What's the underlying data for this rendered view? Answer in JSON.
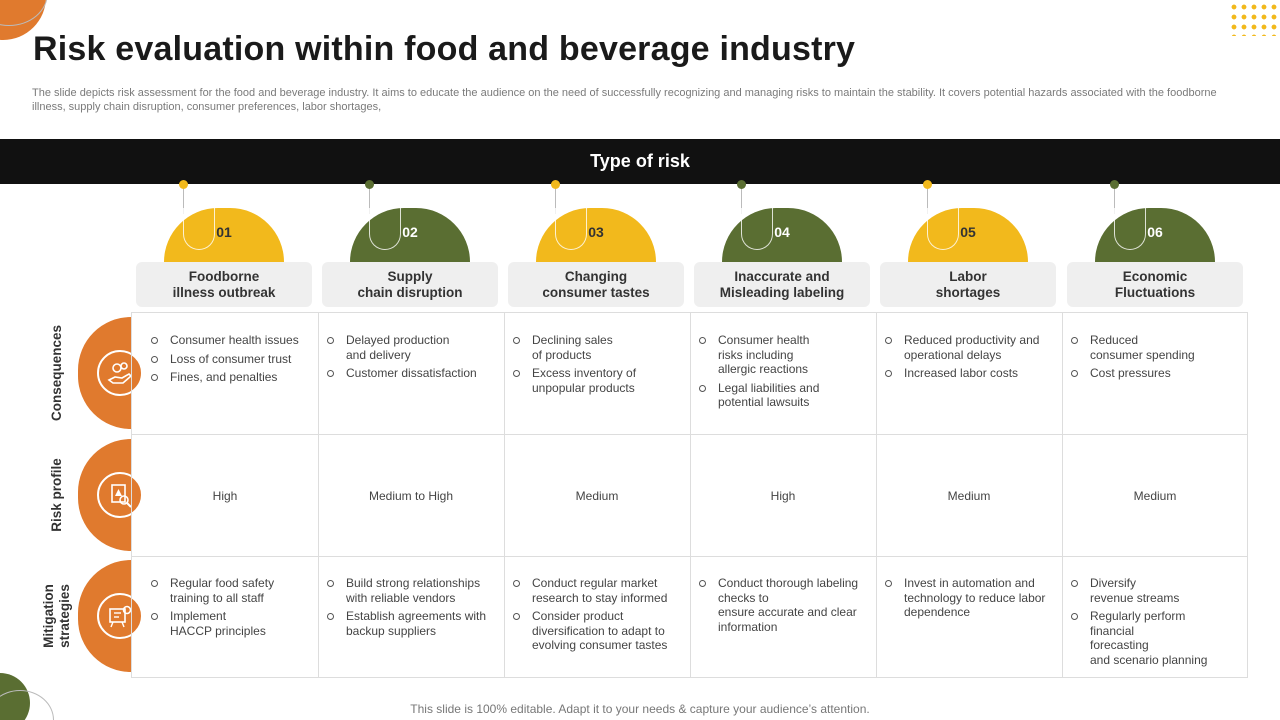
{
  "page": {
    "title": "Risk evaluation within food and beverage industry",
    "description": "The slide depicts risk assessment for the food and beverage industry. It aims to educate the audience on the need of successfully recognizing and managing risks to maintain the stability. It covers potential hazards associated with the foodborne illness, supply chain disruption, consumer preferences, labor shortages,",
    "footer": "This slide is 100% editable. Adapt it to your needs & capture your audience’s attention."
  },
  "banner": {
    "title": "Type of risk"
  },
  "colors": {
    "accent_yellow": "#f2b91c",
    "accent_green": "#5a6e32",
    "accent_orange": "#e07a2e",
    "banner_bg": "#111111"
  },
  "risks": [
    {
      "number": "01",
      "label": "Foodborne\nillness outbreak",
      "color": "#f2b91c"
    },
    {
      "number": "02",
      "label": "Supply\nchain disruption",
      "color": "#5a6e32"
    },
    {
      "number": "03",
      "label": "Changing\nconsumer tastes",
      "color": "#f2b91c"
    },
    {
      "number": "04",
      "label": "Inaccurate and\nMisleading labeling",
      "color": "#5a6e32"
    },
    {
      "number": "05",
      "label": "Labor\nshortages",
      "color": "#f2b91c"
    },
    {
      "number": "06",
      "label": "Economic\nFluctuations",
      "color": "#5a6e32"
    }
  ],
  "rows": [
    {
      "label": "Consequences",
      "icon": "hand-gears-icon"
    },
    {
      "label": "Risk profile",
      "icon": "risk-document-icon"
    },
    {
      "label": "Mitigation\nstrategies",
      "icon": "strategy-board-icon"
    }
  ],
  "consequences": [
    [
      "Consumer health issues",
      "Loss of consumer trust",
      "Fines, and penalties"
    ],
    [
      "Delayed production\nand delivery",
      "Customer dissatisfaction"
    ],
    [
      "Declining sales\nof products",
      "Excess inventory of\nunpopular products"
    ],
    [
      "Consumer health\nrisks including\nallergic reactions",
      "Legal liabilities and\npotential lawsuits"
    ],
    [
      "Reduced productivity and\noperational delays",
      "Increased labor costs"
    ],
    [
      "Reduced\nconsumer spending",
      "Cost pressures"
    ]
  ],
  "risk_profile": [
    "High",
    "Medium to High",
    "Medium",
    "High",
    "Medium",
    "Medium"
  ],
  "mitigation": [
    [
      "Regular food safety\ntraining to all staff",
      "Implement\nHACCP principles"
    ],
    [
      "Build strong relationships\nwith reliable vendors",
      "Establish agreements with\nbackup suppliers"
    ],
    [
      "Conduct regular market\nresearch to stay informed",
      "Consider product\ndiversification to adapt to\nevolving consumer tastes"
    ],
    [
      "Conduct thorough labeling\nchecks to\nensure accurate and clear\ninformation"
    ],
    [
      "Invest in automation and\ntechnology to reduce labor\ndependence"
    ],
    [
      "Diversify\nrevenue streams",
      "Regularly perform financial\nforecasting\nand scenario planning"
    ]
  ]
}
